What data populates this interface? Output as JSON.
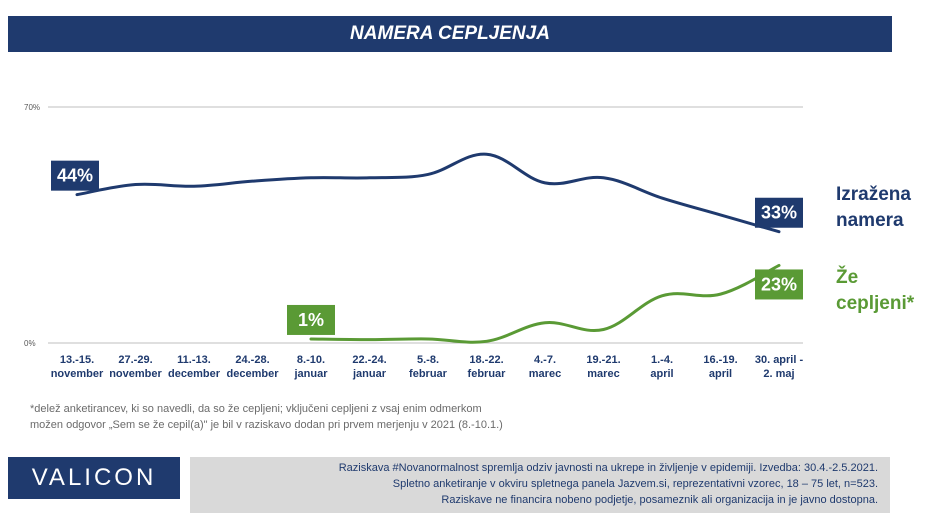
{
  "title": "NAMERA CEPLJENJA",
  "footnotes": [
    "*delež anketirancev, ki so navedli, da so že cepljeni; vključeni cepljeni z vsaj enim odmerkom",
    "možen odgovor „Sem se že cepil(a)\" je bil v raziskavo dodan pri prvem merjenju v 2021 (8.-10.1.)"
  ],
  "logo": "VALICON",
  "info_lines": [
    "Raziskava #Novanormalnost spremlja odziv javnosti na ukrepe in življenje v epidemiji. Izvedba: 30.4.-2.5.2021.",
    "Spletno anketiranje v okviru spletnega panela Jazvem.si, reprezentativni vzorec, 18 – 75 let, n=523.",
    "Raziskave ne financira nobeno podjetje, posameznik ali organizacija in je javno dostopna."
  ],
  "chart_data": {
    "type": "line",
    "title": "NAMERA CEPLJENJA",
    "categories": [
      [
        "13.-15.",
        "november"
      ],
      [
        "27.-29.",
        "november"
      ],
      [
        "11.-13.",
        "december"
      ],
      [
        "24.-28.",
        "december"
      ],
      [
        "8.-10.",
        "januar"
      ],
      [
        "22.-24.",
        "januar"
      ],
      [
        "5.-8.",
        "februar"
      ],
      [
        "18.-22.",
        "februar"
      ],
      [
        "4.-7.",
        "marec"
      ],
      [
        "19.-21.",
        "marec"
      ],
      [
        "1.-4.",
        "april"
      ],
      [
        "16.-19.",
        "april"
      ],
      [
        "30. april -",
        "2. maj"
      ]
    ],
    "ylim": [
      0,
      70
    ],
    "yticks": [
      "0%",
      "70%"
    ],
    "yticks_values": [
      0,
      70
    ],
    "grid": true,
    "series": [
      {
        "name": "Izražena namera",
        "name_lines": [
          "Izražena",
          "namera"
        ],
        "color": "#1f3a6e",
        "values": [
          44,
          47,
          46.5,
          48,
          49,
          49,
          50,
          56,
          47.5,
          49,
          43,
          38,
          33
        ],
        "labels": [
          {
            "index": 0,
            "text": "44%",
            "position": "above"
          },
          {
            "index": 12,
            "text": "33%",
            "position": "above"
          }
        ]
      },
      {
        "name": "Že cepljeni*",
        "name_lines": [
          "Že",
          "cepljeni*"
        ],
        "color": "#5a9a35",
        "values": [
          null,
          null,
          null,
          null,
          1.2,
          1,
          1.2,
          0.5,
          6,
          4,
          14,
          14.5,
          23
        ],
        "labels": [
          {
            "index": 4,
            "text": "1%",
            "position": "above"
          },
          {
            "index": 12,
            "text": "23%",
            "position": "below"
          }
        ]
      }
    ]
  }
}
